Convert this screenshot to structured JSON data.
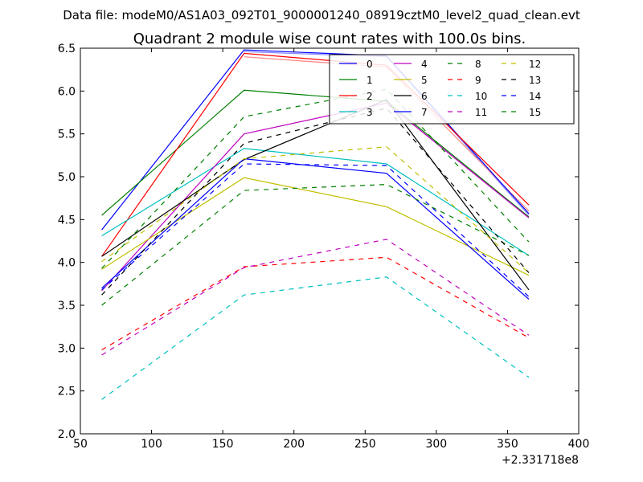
{
  "suptitle": "Data file: modeM0/AS1A03_092T01_9000001240_08919cztM0_level2_quad_clean.evt",
  "chart_data": {
    "type": "line",
    "title": "Quadrant 2 module wise count rates with 100.0s bins.",
    "xlabel": "",
    "ylabel": "",
    "x_offset_label": "+2.331718e8",
    "xlim": [
      50,
      400
    ],
    "ylim": [
      2.0,
      6.5
    ],
    "x_ticks": [
      "50",
      "100",
      "150",
      "200",
      "250",
      "300",
      "350",
      "400"
    ],
    "y_ticks": [
      "2.0",
      "2.5",
      "3.0",
      "3.5",
      "4.0",
      "4.5",
      "5.0",
      "5.5",
      "6.0",
      "6.5"
    ],
    "x": [
      65,
      165,
      265,
      365
    ],
    "grid": false,
    "legend_position": "top-right",
    "series": [
      {
        "name": "0",
        "values": [
          4.38,
          6.48,
          6.41,
          4.57
        ],
        "color": "#0000ff",
        "dash": "solid"
      },
      {
        "name": "1",
        "values": [
          4.55,
          6.01,
          5.88,
          4.53
        ],
        "color": "#008000",
        "dash": "solid"
      },
      {
        "name": "2",
        "values": [
          4.07,
          6.44,
          6.3,
          4.67
        ],
        "color": "#ff0000",
        "dash": "solid"
      },
      {
        "name": "3",
        "values": [
          4.31,
          5.33,
          5.15,
          4.08
        ],
        "color": "#00bfbf",
        "dash": "solid"
      },
      {
        "name": "4",
        "values": [
          3.67,
          5.5,
          5.86,
          4.52
        ],
        "color": "#bf00bf",
        "dash": "solid"
      },
      {
        "name": "5",
        "values": [
          3.92,
          4.99,
          4.65,
          3.85
        ],
        "color": "#bfbf00",
        "dash": "solid"
      },
      {
        "name": "6",
        "values": [
          4.07,
          5.2,
          5.9,
          3.68
        ],
        "color": "#000000",
        "dash": "solid"
      },
      {
        "name": "7",
        "values": [
          3.7,
          5.21,
          5.04,
          3.57
        ],
        "color": "#0000ff",
        "dash": "solid"
      },
      {
        "name": "8",
        "values": [
          3.5,
          4.84,
          4.91,
          4.08
        ],
        "color": "#008000",
        "dash": "dashed"
      },
      {
        "name": "9",
        "values": [
          2.98,
          3.95,
          4.06,
          3.12
        ],
        "color": "#ff0000",
        "dash": "dashed"
      },
      {
        "name": "10",
        "values": [
          2.4,
          3.62,
          3.83,
          2.66
        ],
        "color": "#00bfbf",
        "dash": "dashed"
      },
      {
        "name": "11",
        "values": [
          2.92,
          3.94,
          4.27,
          3.15
        ],
        "color": "#bf00bf",
        "dash": "dashed"
      },
      {
        "name": "12",
        "values": [
          4.01,
          5.21,
          5.35,
          3.88
        ],
        "color": "#bfbf00",
        "dash": "dashed"
      },
      {
        "name": "13",
        "values": [
          3.62,
          5.39,
          5.8,
          3.88
        ],
        "color": "#000000",
        "dash": "dashed"
      },
      {
        "name": "14",
        "values": [
          3.68,
          5.15,
          5.13,
          3.6
        ],
        "color": "#0000ff",
        "dash": "dashed"
      },
      {
        "name": "15",
        "values": [
          3.93,
          5.7,
          6.02,
          4.24
        ],
        "color": "#008000",
        "dash": "dashed"
      }
    ],
    "series_extra": [
      {
        "name": "",
        "values": [
          null,
          6.46,
          6.4,
          4.55
        ],
        "color": "#8888ff",
        "dash": "solid"
      },
      {
        "name": "",
        "values": [
          null,
          6.4,
          6.28,
          4.6
        ],
        "color": "#ff8080",
        "dash": "solid"
      }
    ]
  }
}
